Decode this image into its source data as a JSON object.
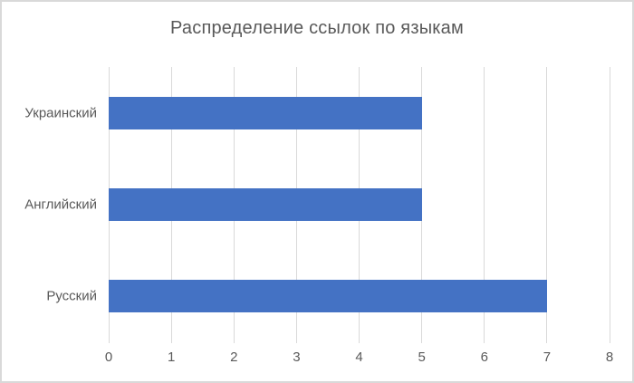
{
  "chart": {
    "title": "Распределение ссылок по языкам"
  },
  "chart_data": {
    "type": "bar",
    "orientation": "horizontal",
    "title": "Распределение ссылок по языкам",
    "categories": [
      "Украинский",
      "Английский",
      "Русский"
    ],
    "values": [
      5,
      5,
      7
    ],
    "xlabel": "",
    "ylabel": "",
    "xlim": [
      0,
      8
    ],
    "xticks": [
      0,
      1,
      2,
      3,
      4,
      5,
      6,
      7,
      8
    ],
    "grid": true,
    "legend": "none",
    "category_order": "top-to-bottom",
    "colors": {
      "bar": "#4472c4",
      "gridline": "#d9d9d9",
      "text": "#595959",
      "frame_border": "#d9d9d9",
      "background": "#ffffff"
    }
  }
}
